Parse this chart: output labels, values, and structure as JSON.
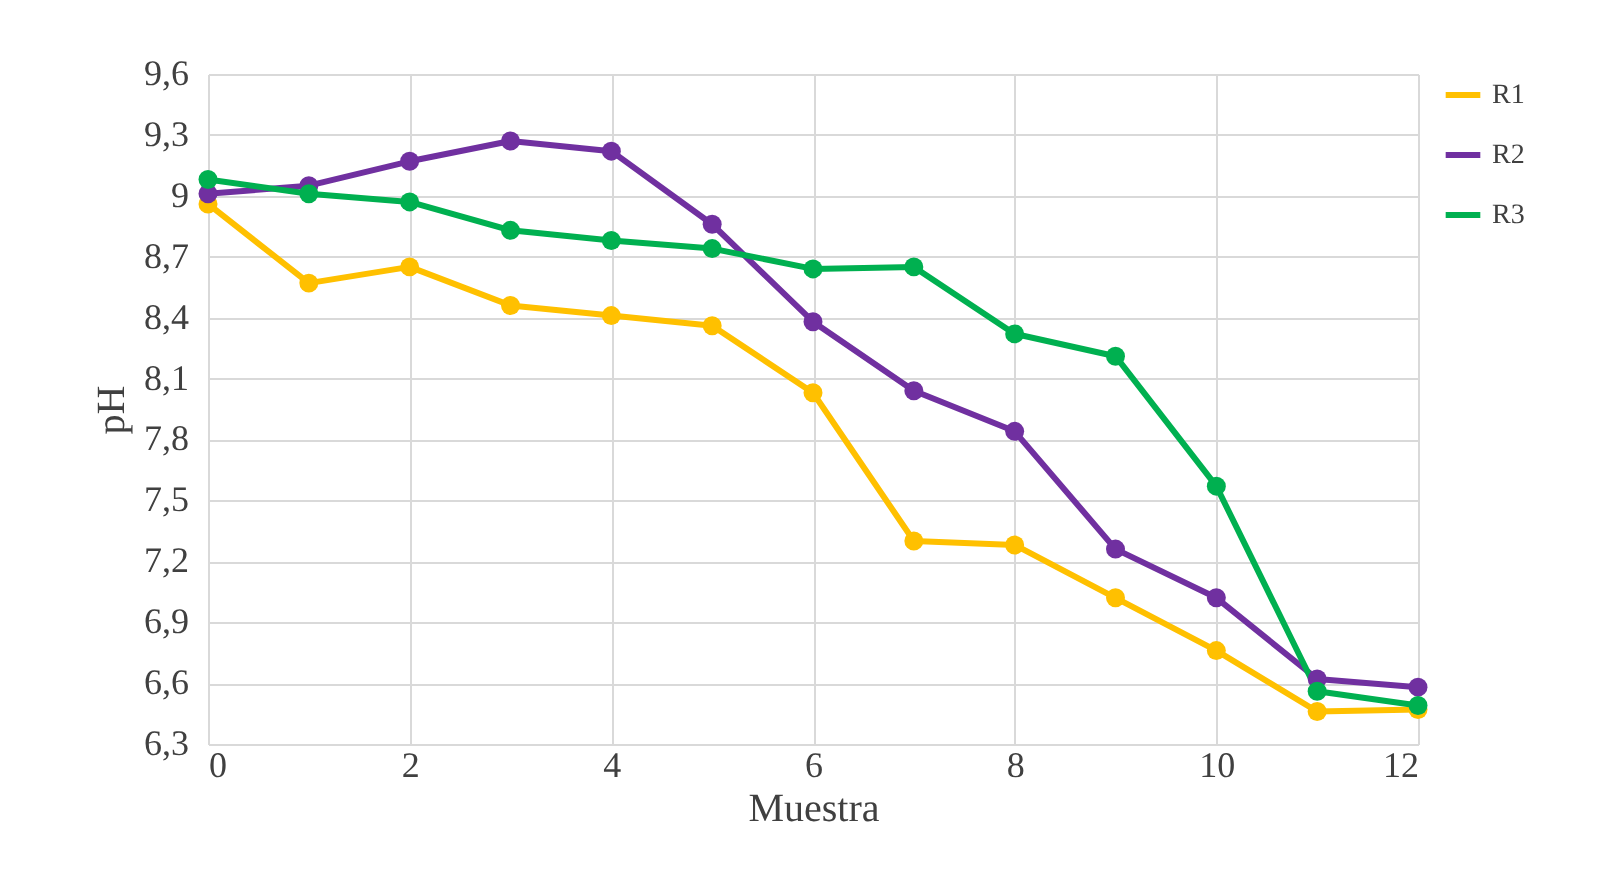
{
  "chart_data": {
    "type": "line",
    "xlabel": "Muestra",
    "ylabel": "pH",
    "x": [
      0,
      1,
      2,
      3,
      4,
      5,
      6,
      7,
      8,
      9,
      10,
      11,
      12
    ],
    "series": [
      {
        "name": "R1",
        "color": "#ffc000",
        "values": [
          8.96,
          8.57,
          8.65,
          8.46,
          8.41,
          8.36,
          8.03,
          7.3,
          7.28,
          7.02,
          6.76,
          6.46,
          6.47
        ]
      },
      {
        "name": "R2",
        "color": "#7030a0",
        "values": [
          9.01,
          9.05,
          9.17,
          9.27,
          9.22,
          8.86,
          8.38,
          8.04,
          7.84,
          7.26,
          7.02,
          6.62,
          6.58
        ]
      },
      {
        "name": "R3",
        "color": "#00b050",
        "values": [
          9.08,
          9.01,
          8.97,
          8.83,
          8.78,
          8.74,
          8.64,
          8.65,
          8.32,
          8.21,
          7.57,
          6.56,
          6.49
        ]
      }
    ],
    "xlim": [
      0,
      12
    ],
    "xticks": [
      0,
      2,
      4,
      6,
      8,
      10,
      12
    ],
    "ylim": [
      6.3,
      9.6
    ],
    "yticks": [
      {
        "value": 6.3,
        "label": "6,3"
      },
      {
        "value": 6.6,
        "label": "6,6"
      },
      {
        "value": 6.9,
        "label": "6,9"
      },
      {
        "value": 7.2,
        "label": "7,2"
      },
      {
        "value": 7.5,
        "label": "7,5"
      },
      {
        "value": 7.8,
        "label": "7,8"
      },
      {
        "value": 8.1,
        "label": "8,1"
      },
      {
        "value": 8.4,
        "label": "8,4"
      },
      {
        "value": 8.7,
        "label": "8,7"
      },
      9,
      {
        "value": 9.3,
        "label": "9,3"
      },
      {
        "value": 9.6,
        "label": "9,6"
      }
    ],
    "grid": true,
    "legend": "right",
    "marker": "circle",
    "line_style": "solid"
  }
}
